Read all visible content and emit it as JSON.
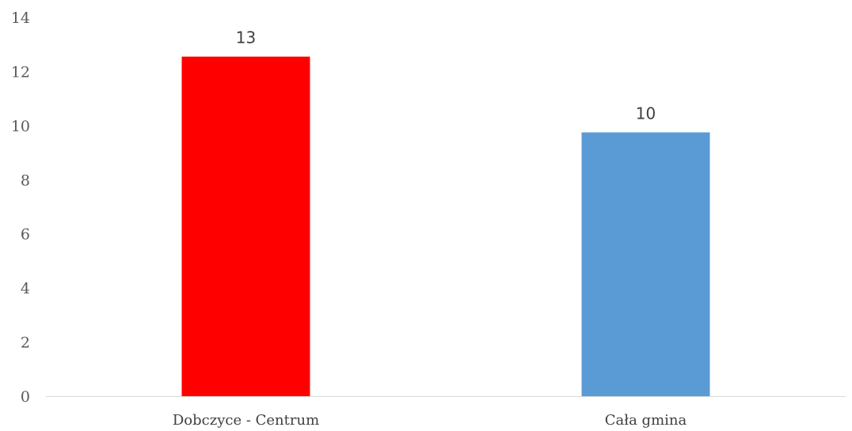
{
  "chart_data": {
    "type": "bar",
    "title": "",
    "xlabel": "",
    "ylabel": "",
    "categories": [
      "Dobczyce - Centrum",
      "Cała gmina"
    ],
    "values": [
      12.55,
      9.75
    ],
    "data_labels": [
      "13",
      "10"
    ],
    "colors": [
      "#ff0000",
      "#5b9bd5"
    ],
    "ylim": [
      0,
      14
    ],
    "yticks": [
      0,
      2,
      4,
      6,
      8,
      10,
      12,
      14
    ],
    "grid": false,
    "legend": "none"
  }
}
